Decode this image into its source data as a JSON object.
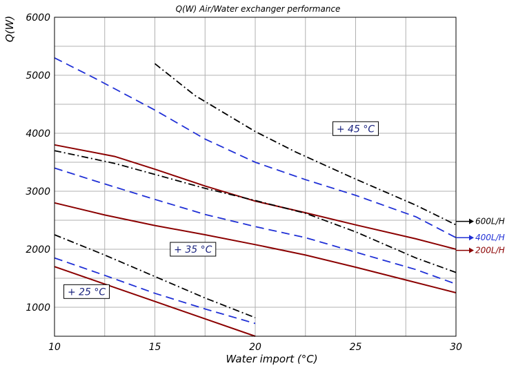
{
  "chart_data": {
    "type": "line",
    "title": "Q(W) Air/Water exchanger performance",
    "xlabel": "Water import  (°C)",
    "ylabel": "Q(W)",
    "xlim": [
      10,
      30
    ],
    "ylim": [
      500,
      6000
    ],
    "xticks": [
      10,
      15,
      20,
      25,
      30
    ],
    "yticks": [
      1000,
      2000,
      3000,
      4000,
      5000,
      6000
    ],
    "grid": true,
    "flow_labels": [
      {
        "text": "600L/H",
        "color": "#000000",
        "y": 2480
      },
      {
        "text": "400L/H",
        "color": "#1f2fd6",
        "y": 2200
      },
      {
        "text": "200L/H",
        "color": "#8b0000",
        "y": 1980
      }
    ],
    "annotations": [
      {
        "text": "+ 45 °C",
        "x": 25,
        "y": 4080
      },
      {
        "text": "+ 35 °C",
        "x": 16.9,
        "y": 2000
      },
      {
        "text": "+ 25 °C",
        "x": 11.6,
        "y": 1270
      }
    ],
    "series": [
      {
        "group": "45",
        "flow": "600L/H",
        "style": "dashdot",
        "color": "#000000",
        "points": [
          [
            15,
            5200
          ],
          [
            17,
            4650
          ],
          [
            20,
            4030
          ],
          [
            22,
            3680
          ],
          [
            25,
            3210
          ],
          [
            28,
            2760
          ],
          [
            30,
            2420
          ]
        ]
      },
      {
        "group": "45",
        "flow": "400L/H",
        "style": "dash",
        "color": "#1f2fd6",
        "points": [
          [
            10,
            5300
          ],
          [
            12,
            4950
          ],
          [
            15,
            4400
          ],
          [
            17.5,
            3900
          ],
          [
            20,
            3500
          ],
          [
            22.5,
            3200
          ],
          [
            25,
            2930
          ],
          [
            28,
            2560
          ],
          [
            30,
            2200
          ]
        ]
      },
      {
        "group": "45",
        "flow": "200L/H",
        "style": "solid",
        "color": "#8b0000",
        "points": [
          [
            10,
            3800
          ],
          [
            13,
            3600
          ],
          [
            15,
            3380
          ],
          [
            17.5,
            3090
          ],
          [
            20,
            2830
          ],
          [
            22.5,
            2630
          ],
          [
            25,
            2420
          ],
          [
            28,
            2180
          ],
          [
            30,
            2000
          ]
        ]
      },
      {
        "group": "35",
        "flow": "600L/H",
        "style": "dashdot",
        "color": "#000000",
        "points": [
          [
            10,
            3700
          ],
          [
            13,
            3480
          ],
          [
            15,
            3290
          ],
          [
            17.5,
            3050
          ],
          [
            20,
            2840
          ],
          [
            22.5,
            2620
          ],
          [
            25,
            2300
          ],
          [
            28,
            1850
          ],
          [
            30,
            1600
          ]
        ]
      },
      {
        "group": "35",
        "flow": "400L/H",
        "style": "dash",
        "color": "#1f2fd6",
        "points": [
          [
            10,
            3400
          ],
          [
            12,
            3180
          ],
          [
            15,
            2860
          ],
          [
            17.5,
            2600
          ],
          [
            20,
            2390
          ],
          [
            22.5,
            2200
          ],
          [
            25,
            1950
          ],
          [
            28,
            1650
          ],
          [
            30,
            1400
          ]
        ]
      },
      {
        "group": "35",
        "flow": "200L/H",
        "style": "solid",
        "color": "#8b0000",
        "points": [
          [
            10,
            2800
          ],
          [
            12.5,
            2590
          ],
          [
            15,
            2410
          ],
          [
            17.5,
            2250
          ],
          [
            20,
            2080
          ],
          [
            22.5,
            1900
          ],
          [
            25,
            1690
          ],
          [
            27.5,
            1470
          ],
          [
            30,
            1250
          ]
        ]
      },
      {
        "group": "25",
        "flow": "600L/H",
        "style": "dashdot",
        "color": "#000000",
        "points": [
          [
            10,
            2250
          ],
          [
            12.5,
            1900
          ],
          [
            15,
            1530
          ],
          [
            17.5,
            1160
          ],
          [
            20,
            820
          ]
        ]
      },
      {
        "group": "25",
        "flow": "400L/H",
        "style": "dash",
        "color": "#1f2fd6",
        "points": [
          [
            10,
            1850
          ],
          [
            12.5,
            1550
          ],
          [
            15,
            1240
          ],
          [
            17.5,
            970
          ],
          [
            20,
            720
          ]
        ]
      },
      {
        "group": "25",
        "flow": "200L/H",
        "style": "solid",
        "color": "#8b0000",
        "points": [
          [
            10,
            1700
          ],
          [
            12.5,
            1400
          ],
          [
            15,
            1100
          ],
          [
            17.5,
            800
          ],
          [
            20,
            500
          ]
        ]
      }
    ]
  }
}
